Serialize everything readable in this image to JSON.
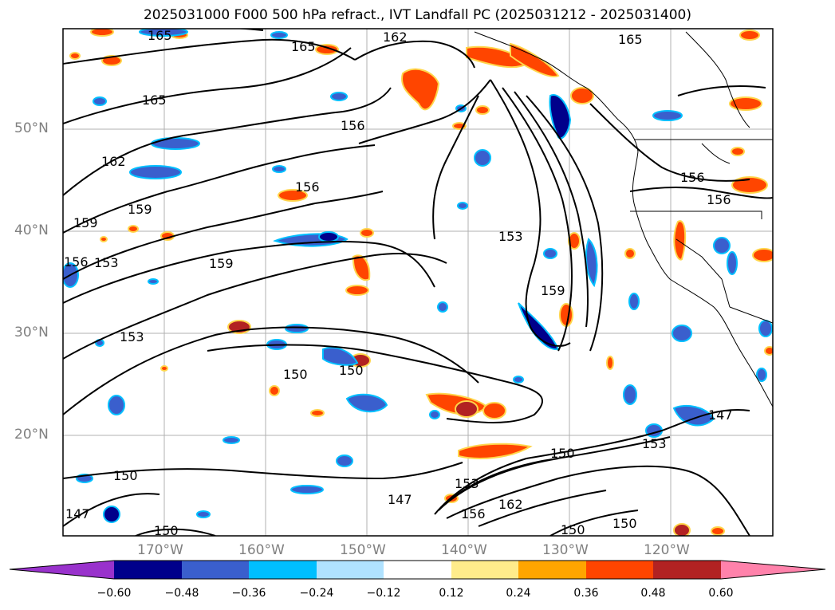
{
  "title": "2025031000 F000 500 hPa refract., IVT Landfall PC (2025031212 - 2025031400)",
  "latitude_labels": [
    "50°N",
    "40°N",
    "30°N",
    "20°N"
  ],
  "longitude_labels": [
    "170°W",
    "160°W",
    "150°W",
    "140°W",
    "130°W",
    "120°W"
  ],
  "contour_labels": [
    "165",
    "165",
    "162",
    "165",
    "165",
    "156",
    "162",
    "159",
    "159",
    "156",
    "156",
    "156",
    "153",
    "159",
    "153",
    "159",
    "153",
    "150",
    "150",
    "150",
    "147",
    "147",
    "153",
    "150",
    "153",
    "162",
    "156",
    "150",
    "150",
    "150",
    "147",
    "156"
  ],
  "colorbar": {
    "tick_labels": [
      "−0.60",
      "−0.48",
      "−0.36",
      "−0.24",
      "−0.12",
      "0.12",
      "0.24",
      "0.36",
      "0.48",
      "0.60"
    ],
    "colors": [
      "#9932cc",
      "#00008b",
      "#3a5fcd",
      "#00bfff",
      "#b0e2ff",
      "#ffffff",
      "#ffec8b",
      "#ffa500",
      "#ff4500",
      "#b22222",
      "#ff82ab"
    ]
  }
}
